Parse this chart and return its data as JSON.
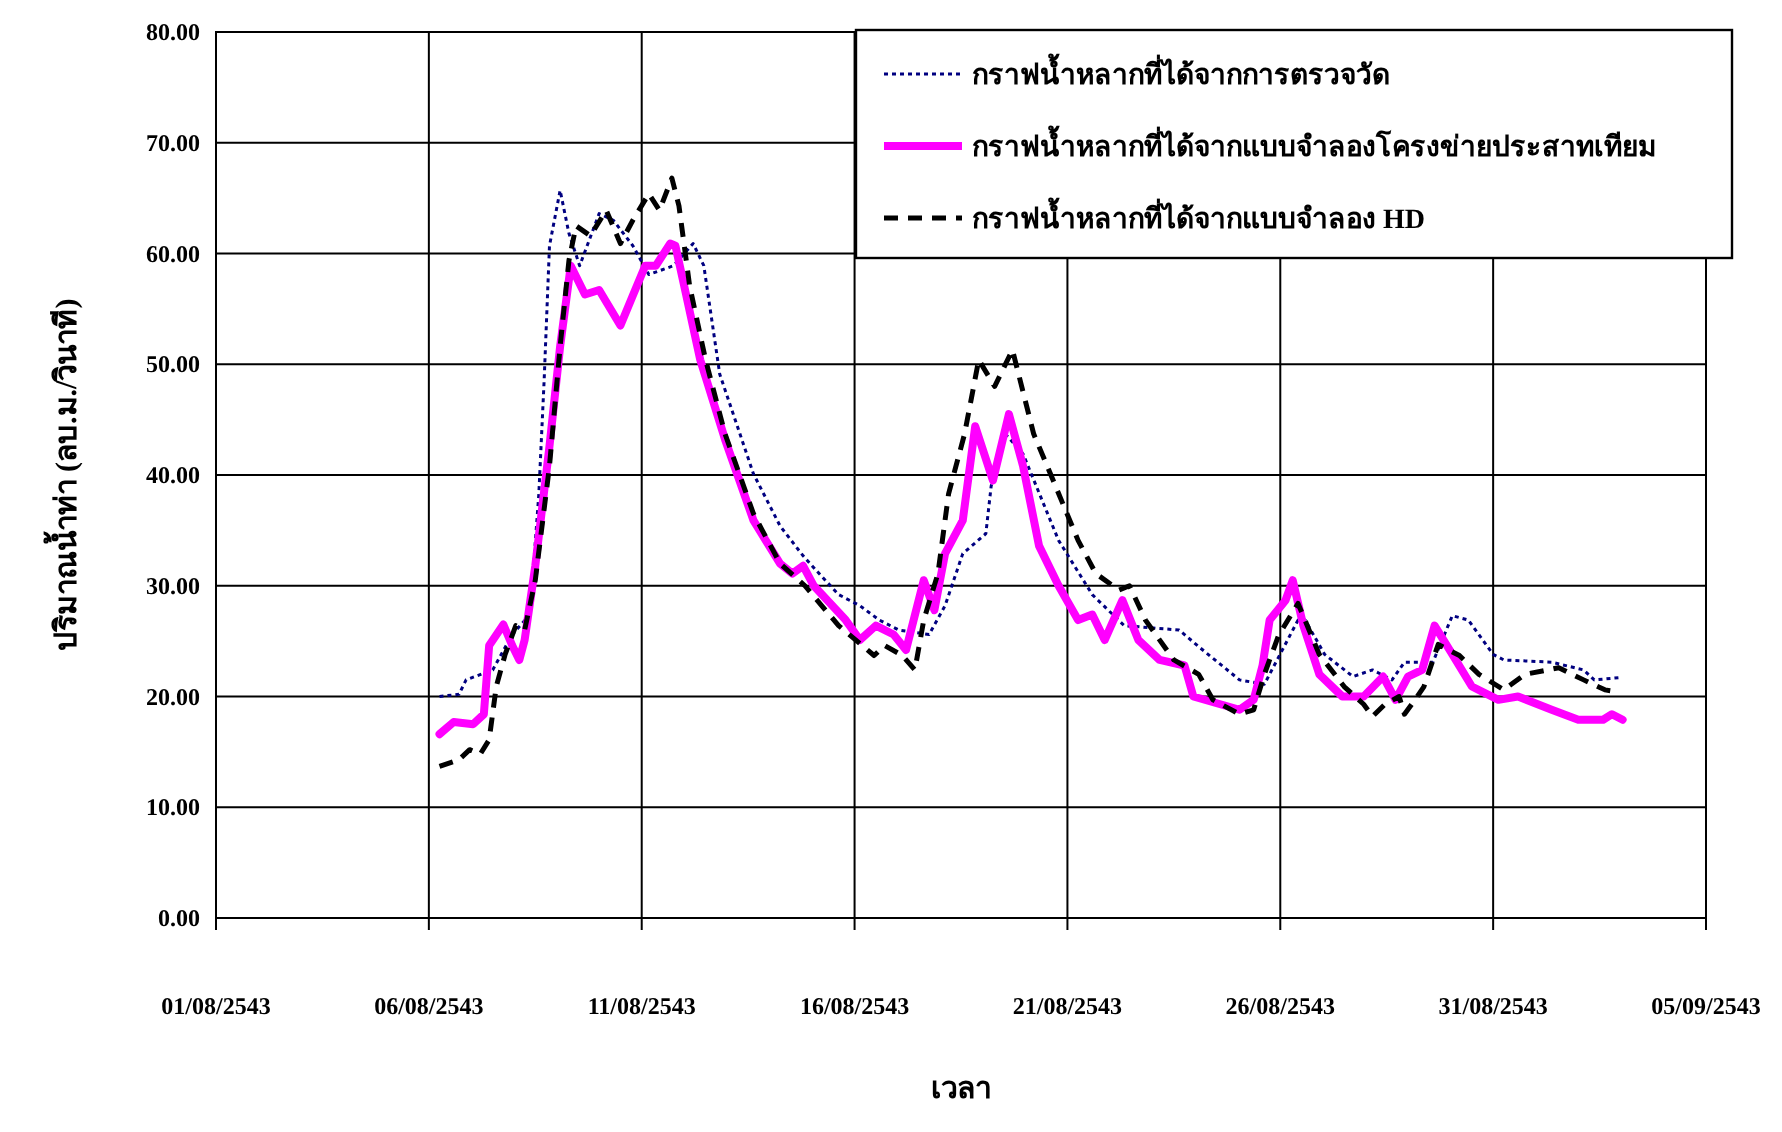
{
  "chart_data": {
    "type": "line",
    "xlabel": "เวลา",
    "ylabel": "ปริมาณน้ำท่า (ลบ.ม./วินาที)",
    "xlim": [
      "2543-08-01",
      "2543-09-05"
    ],
    "xticks": [
      {
        "value": "2543-08-01",
        "label": "01/08/2543"
      },
      {
        "value": "2543-08-06",
        "label": "06/08/2543"
      },
      {
        "value": "2543-08-11",
        "label": "11/08/2543"
      },
      {
        "value": "2543-08-16",
        "label": "16/08/2543"
      },
      {
        "value": "2543-08-21",
        "label": "21/08/2543"
      },
      {
        "value": "2543-08-26",
        "label": "26/08/2543"
      },
      {
        "value": "2543-08-31",
        "label": "31/08/2543"
      },
      {
        "value": "2543-09-05",
        "label": "05/09/2543"
      }
    ],
    "ylim": [
      0,
      80
    ],
    "yticks": [
      {
        "value": 0,
        "label": "0.00"
      },
      {
        "value": 10,
        "label": "10.00"
      },
      {
        "value": 20,
        "label": "20.00"
      },
      {
        "value": 30,
        "label": "30.00"
      },
      {
        "value": 40,
        "label": "40.00"
      },
      {
        "value": 50,
        "label": "50.00"
      },
      {
        "value": 60,
        "label": "60.00"
      },
      {
        "value": 70,
        "label": "70.00"
      },
      {
        "value": 80,
        "label": "80.00"
      }
    ],
    "grid": true,
    "legend": "top right",
    "series": [
      {
        "name": "กราฟน้ำหลากที่ได้จากการตรวจวัด",
        "color": "#000080",
        "line_style": "dotted",
        "x": [
          "2543-08-06T06:00",
          "2543-08-06T17:00",
          "2543-08-06T21:00",
          "2543-08-07T12:00",
          "2543-08-07T23:00",
          "2543-08-08T09:00",
          "2543-08-08T14:00",
          "2543-08-08T17:00",
          "2543-08-08T20:00",
          "2543-08-09T02:00",
          "2543-08-09T07:00",
          "2543-08-09T13:00",
          "2543-08-10T00:00",
          "2543-08-10T08:00",
          "2543-08-10T19:00",
          "2543-08-11T04:00",
          "2543-08-11T18:00",
          "2543-08-12T05:00",
          "2543-08-12T11:00",
          "2543-08-12T20:00",
          "2543-08-13T15:00",
          "2543-08-14T06:00",
          "2543-08-14T19:00",
          "2543-08-15T04:00",
          "2543-08-15T15:00",
          "2543-08-16T03:00",
          "2543-08-16T14:00",
          "2543-08-17T01:00",
          "2543-08-17T18:00",
          "2543-08-18T03:00",
          "2543-08-18T13:00",
          "2543-08-19T02:00",
          "2543-08-19T05:00",
          "2543-08-19T13:00",
          "2543-08-19T23:00",
          "2543-08-20T19:00",
          "2543-08-21T14:00",
          "2543-08-22T08:00",
          "2543-08-23T15:00",
          "2543-08-24T02:00",
          "2543-08-25T01:00",
          "2543-08-25T15:00",
          "2543-08-26T10:00",
          "2543-08-26T14:00",
          "2543-08-27T01:00",
          "2543-08-27T17:00",
          "2543-08-28T04:00",
          "2543-08-28T15:00",
          "2543-08-28T22:00",
          "2543-08-29T14:00",
          "2543-08-30T01:00",
          "2543-08-30T10:00",
          "2543-08-31T00:00",
          "2543-08-31T06:00",
          "2543-09-01T09:00",
          "2543-09-02T03:00",
          "2543-09-02T09:00",
          "2543-09-02T23:00"
        ],
        "values": [
          20.0,
          20.2,
          21.5,
          22.4,
          25.6,
          27.4,
          38.3,
          48.6,
          60.7,
          65.7,
          61.8,
          58.9,
          63.6,
          63.0,
          60.7,
          58.1,
          58.9,
          60.9,
          58.9,
          49.1,
          40.1,
          35.4,
          32.7,
          31.1,
          29.2,
          28.2,
          26.9,
          26.0,
          25.6,
          28.2,
          32.9,
          34.7,
          39.0,
          43.7,
          41.9,
          34.1,
          29.2,
          26.4,
          26.0,
          24.5,
          21.5,
          21.1,
          26.9,
          26.9,
          23.8,
          21.8,
          22.4,
          21.5,
          23.1,
          23.1,
          27.3,
          26.9,
          23.8,
          23.3,
          23.1,
          22.4,
          21.5,
          21.7
        ]
      },
      {
        "name": "กราฟน้ำหลากที่ได้จากแบบจำลองโครงข่ายประสาทเทียม",
        "color": "#ff00ff",
        "line_style": "solid",
        "x": [
          "2543-08-06T06:00",
          "2543-08-06T14:00",
          "2543-08-07T01:00",
          "2543-08-07T07:00",
          "2543-08-07T10:00",
          "2543-08-07T18:00",
          "2543-08-07T23:00",
          "2543-08-08T03:00",
          "2543-08-08T06:00",
          "2543-08-08T12:00",
          "2543-08-08T20:00",
          "2543-08-09T02:00",
          "2543-08-09T08:00",
          "2543-08-09T16:00",
          "2543-08-10T00:00",
          "2543-08-10T12:00",
          "2543-08-10T19:00",
          "2543-08-11T02:00",
          "2543-08-11T08:00",
          "2543-08-11T16:00",
          "2543-08-11T19:00",
          "2543-08-12T01:00",
          "2543-08-12T09:00",
          "2543-08-12T23:00",
          "2543-08-13T15:00",
          "2543-08-14T06:00",
          "2543-08-14T13:00",
          "2543-08-14T19:00",
          "2543-08-15T01:00",
          "2543-08-15T19:00",
          "2543-08-16T03:00",
          "2543-08-16T12:00",
          "2543-08-16T22:00",
          "2543-08-17T05:00",
          "2543-08-17T15:00",
          "2543-08-17T21:00",
          "2543-08-18T03:00",
          "2543-08-18T13:00",
          "2543-08-18T20:00",
          "2543-08-19T06:00",
          "2543-08-19T15:00",
          "2543-08-19T23:00",
          "2543-08-20T08:00",
          "2543-08-20T19:00",
          "2543-08-21T06:00",
          "2543-08-21T14:00",
          "2543-08-21T21:00",
          "2543-08-22T07:00",
          "2543-08-22T16:00",
          "2543-08-23T04:00",
          "2543-08-23T18:00",
          "2543-08-23T23:00",
          "2543-08-25T01:00",
          "2543-08-25T09:00",
          "2543-08-25T14:00",
          "2543-08-25T18:00",
          "2543-08-26T03:00",
          "2543-08-26T07:00",
          "2543-08-26T13:00",
          "2543-08-26T22:00",
          "2543-08-27T11:00",
          "2543-08-27T23:00",
          "2543-08-28T10:00",
          "2543-08-28T17:00",
          "2543-08-29T00:00",
          "2543-08-29T08:00",
          "2543-08-29T15:00",
          "2543-08-30T01:00",
          "2543-08-30T12:00",
          "2543-08-31T03:00",
          "2543-08-31T14:00",
          "2543-09-01T09:00",
          "2543-09-02T00:00",
          "2543-09-02T14:00",
          "2543-09-02T19:00",
          "2543-09-03T01:00"
        ],
        "values": [
          16.6,
          17.7,
          17.5,
          18.4,
          24.6,
          26.5,
          24.6,
          23.3,
          25.1,
          31.8,
          42.6,
          51.6,
          58.9,
          56.3,
          56.7,
          53.5,
          56.2,
          58.9,
          58.9,
          60.9,
          60.7,
          56.3,
          50.4,
          43.2,
          35.9,
          32.0,
          31.1,
          31.8,
          30.0,
          26.9,
          25.1,
          26.4,
          25.6,
          24.2,
          30.5,
          27.8,
          32.9,
          35.9,
          44.4,
          39.5,
          45.5,
          40.8,
          33.6,
          30.0,
          26.9,
          27.4,
          25.1,
          28.7,
          25.1,
          23.3,
          22.8,
          20.0,
          18.8,
          19.7,
          22.8,
          26.9,
          28.7,
          30.5,
          26.4,
          22.0,
          20.0,
          20.0,
          21.8,
          19.7,
          21.8,
          22.4,
          26.4,
          23.8,
          20.9,
          19.7,
          20.0,
          18.8,
          17.9,
          17.9,
          18.4,
          17.9
        ]
      },
      {
        "name": "กราฟน้ำหลากที่ได้จากแบบจำลอง HD",
        "color": "#000000",
        "line_style": "dashed",
        "x": [
          "2543-08-06T06:00",
          "2543-08-06T17:00",
          "2543-08-06T23:00",
          "2543-08-07T05:00",
          "2543-08-07T10:00",
          "2543-08-07T14:00",
          "2543-08-07T19:00",
          "2543-08-08T01:00",
          "2543-08-08T06:00",
          "2543-08-08T12:00",
          "2543-08-08T20:00",
          "2543-08-09T02:00",
          "2543-08-09T07:00",
          "2543-08-09T11:00",
          "2543-08-09T19:00",
          "2543-08-10T04:00",
          "2543-08-10T12:00",
          "2543-08-10T19:00",
          "2543-08-11T04:00",
          "2543-08-11T10:00",
          "2543-08-11T17:00",
          "2543-08-11T21:00",
          "2543-08-12T03:00",
          "2543-08-12T12:00",
          "2543-08-12T23:00",
          "2543-08-13T15:00",
          "2543-08-14T06:00",
          "2543-08-14T20:00",
          "2543-08-15T15:00",
          "2543-08-16T11:00",
          "2543-08-16T17:00",
          "2543-08-17T03:00",
          "2543-08-17T10:00",
          "2543-08-17T15:00",
          "2543-08-17T23:00",
          "2543-08-18T05:00",
          "2543-08-18T14:00",
          "2543-08-18T22:00",
          "2543-08-19T07:00",
          "2543-08-19T17:00",
          "2543-08-20T05:00",
          "2543-08-20T16:00",
          "2543-08-21T06:00",
          "2543-08-21T16:00",
          "2543-08-22T05:00",
          "2543-08-22T11:00",
          "2543-08-22T20:00",
          "2543-08-23T12:00",
          "2543-08-24T02:00",
          "2543-08-24T10:00",
          "2543-08-25T01:00",
          "2543-08-25T09:00",
          "2543-08-25T15:00",
          "2543-08-25T23:00",
          "2543-08-26T10:00",
          "2543-08-26T22:00",
          "2543-08-27T12:00",
          "2543-08-27T23:00",
          "2543-08-28T04:00",
          "2543-08-28T11:00",
          "2543-08-28T19:00",
          "2543-08-28T22:00",
          "2543-08-29T04:00",
          "2543-08-29T09:00",
          "2543-08-29T17:00",
          "2543-08-30T05:00",
          "2543-08-30T16:00",
          "2543-08-31T06:00",
          "2543-08-31T18:00",
          "2543-09-01T13:00",
          "2543-09-02T03:00",
          "2543-09-02T15:00",
          "2543-09-02T23:00"
        ],
        "values": [
          13.7,
          14.3,
          15.2,
          14.8,
          16.1,
          20.9,
          23.8,
          26.4,
          26.0,
          30.5,
          40.8,
          51.6,
          59.4,
          62.5,
          61.6,
          63.9,
          60.9,
          63.0,
          65.4,
          63.9,
          66.8,
          64.3,
          57.1,
          50.4,
          43.7,
          36.5,
          32.0,
          30.0,
          26.4,
          23.7,
          24.6,
          23.7,
          22.4,
          26.9,
          31.1,
          38.3,
          43.7,
          50.4,
          48.0,
          51.3,
          43.7,
          39.5,
          34.1,
          31.1,
          29.6,
          30.0,
          26.9,
          23.3,
          22.0,
          19.7,
          18.4,
          18.8,
          22.0,
          25.5,
          28.4,
          23.8,
          20.9,
          19.3,
          18.2,
          19.3,
          20.0,
          18.4,
          19.7,
          20.9,
          24.7,
          23.7,
          22.0,
          20.6,
          22.0,
          22.6,
          21.5,
          20.6,
          20.4
        ]
      }
    ]
  }
}
